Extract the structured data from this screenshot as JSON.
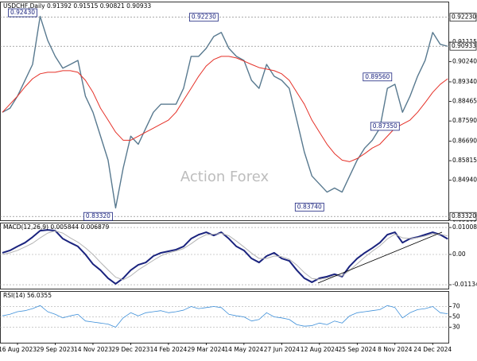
{
  "chart_data": [
    {
      "type": "line",
      "title": "USDCHF,Daily 0.91392 0.91515 0.90821 0.90933",
      "watermark": "Action Forex",
      "categories": [
        null,
        null,
        "16 Aug 2023",
        null,
        null,
        null,
        null,
        "29 Sep 2023",
        null,
        null,
        null,
        null,
        "14 Nov 2023",
        null,
        null,
        null,
        null,
        "29 Dec 2023",
        null,
        null,
        null,
        null,
        "14 Feb 2024",
        null,
        null,
        null,
        null,
        "29 Mar 2024",
        null,
        null,
        null,
        null,
        "14 May 2024",
        null,
        null,
        null,
        null,
        "27 Jun 2024",
        null,
        null,
        null,
        null,
        "12 Aug 2024",
        null,
        null,
        null,
        null,
        "25 Sep 2024",
        null,
        null,
        null,
        null,
        "8 Nov 2024",
        null,
        null,
        null,
        null,
        "24 Dec 2024",
        null,
        null
      ],
      "series": [
        {
          "color": "#58798f",
          "width": 1.4,
          "values": [
            0.8798,
            0.8816,
            0.887,
            0.8941,
            0.9012,
            0.9227,
            0.912,
            0.9048,
            0.8995,
            0.9012,
            0.903,
            0.887,
            0.8798,
            0.8691,
            0.8584,
            0.837,
            0.8548,
            0.8691,
            0.8655,
            0.8727,
            0.8798,
            0.8834,
            0.8834,
            0.8834,
            0.8905,
            0.9048,
            0.9048,
            0.9084,
            0.9137,
            0.9155,
            0.9084,
            0.9048,
            0.903,
            0.8941,
            0.8905,
            0.9012,
            0.8959,
            0.8941,
            0.8905,
            0.8763,
            0.862,
            0.8513,
            0.8477,
            0.8441,
            0.8459,
            0.8441,
            0.8513,
            0.8584,
            0.8638,
            0.8673,
            0.8727,
            0.8905,
            0.8923,
            0.8798,
            0.887,
            0.8959,
            0.903,
            0.9155,
            0.9102,
            0.9093
          ]
        },
        {
          "color": "#e53027",
          "width": 1,
          "values": [
            0.8798,
            0.8834,
            0.887,
            0.8912,
            0.8948,
            0.897,
            0.8977,
            0.8977,
            0.8984,
            0.8984,
            0.8977,
            0.8941,
            0.8887,
            0.8816,
            0.8763,
            0.8709,
            0.8673,
            0.8673,
            0.8691,
            0.8709,
            0.8727,
            0.8745,
            0.8763,
            0.8798,
            0.8852,
            0.8905,
            0.8959,
            0.9005,
            0.9034,
            0.9048,
            0.9048,
            0.9041,
            0.9027,
            0.9012,
            0.8998,
            0.8991,
            0.8984,
            0.897,
            0.8941,
            0.8887,
            0.8834,
            0.8763,
            0.8709,
            0.8655,
            0.8613,
            0.8584,
            0.8577,
            0.8591,
            0.8613,
            0.8638,
            0.8655,
            0.8691,
            0.8727,
            0.8745,
            0.8763,
            0.8798,
            0.8841,
            0.8887,
            0.8923,
            0.8948
          ]
        }
      ],
      "ylim": [
        0.8315,
        0.9293
      ],
      "yticks": [
        {
          "value": 0.91115,
          "label": "0.91115"
        },
        {
          "value": 0.9024,
          "label": "0.90240"
        },
        {
          "value": 0.8934,
          "label": "0.89340"
        },
        {
          "value": 0.88465,
          "label": "0.88465"
        },
        {
          "value": 0.8759,
          "label": "0.87590"
        },
        {
          "value": 0.8669,
          "label": "0.86690"
        },
        {
          "value": 0.85815,
          "label": "0.85815"
        },
        {
          "value": 0.8494,
          "label": "0.84940"
        },
        {
          "value": 0.83165,
          "label": "0.83165"
        }
      ],
      "grid": false,
      "levels": [
        {
          "value": 0.9223,
          "label": "0.92230"
        },
        {
          "value": 0.8332,
          "label": "0.83320"
        },
        {
          "value": 0.90933,
          "label": "0.90933"
        }
      ],
      "annotations": [
        {
          "x": 5,
          "value": 0.9243,
          "label": "0.92430"
        },
        {
          "x": 29,
          "value": 0.9223,
          "label": "0.92230"
        },
        {
          "x": 15,
          "value": 0.8332,
          "label": "0.83320"
        },
        {
          "x": 43,
          "value": 0.8374,
          "label": "0.83740"
        },
        {
          "x": 52,
          "value": 0.8956,
          "label": "0.89560"
        },
        {
          "x": 53,
          "value": 0.8735,
          "label": "0.87350"
        }
      ]
    },
    {
      "type": "line",
      "title": "MACD(12,26,9) 0.005844 0.006879",
      "series": [
        {
          "color": "#1a237e",
          "width": 2,
          "values": [
            0.0006,
            0.0015,
            0.003,
            0.0044,
            0.0065,
            0.0089,
            0.0092,
            0.0089,
            0.0059,
            0.0044,
            0.003,
            0.0,
            -0.0036,
            -0.0059,
            -0.0089,
            -0.011,
            -0.0089,
            -0.0059,
            -0.0039,
            -0.003,
            -0.0006,
            0.0006,
            0.0012,
            0.0018,
            0.003,
            0.0059,
            0.0074,
            0.0083,
            0.0071,
            0.0083,
            0.0059,
            0.003,
            0.0015,
            -0.0015,
            -0.003,
            -0.0006,
            0.0006,
            -0.0015,
            -0.0024,
            -0.0059,
            -0.0089,
            -0.0104,
            -0.0089,
            -0.0083,
            -0.0074,
            -0.0083,
            -0.0044,
            -0.0015,
            0.0006,
            0.0024,
            0.0044,
            0.0074,
            0.0083,
            0.0044,
            0.0059,
            0.0065,
            0.0074,
            0.0083,
            0.0074,
            0.0058
          ]
        },
        {
          "color": "#b4b4b4",
          "width": 1,
          "values": [
            0.0,
            0.0006,
            0.0015,
            0.0028,
            0.0042,
            0.0062,
            0.008,
            0.0088,
            0.008,
            0.0062,
            0.0046,
            0.0025,
            0.0,
            -0.003,
            -0.0058,
            -0.0085,
            -0.0095,
            -0.008,
            -0.0058,
            -0.004,
            -0.0022,
            -0.0005,
            0.0006,
            0.0013,
            0.0022,
            0.004,
            0.006,
            0.0074,
            0.0076,
            0.0079,
            0.007,
            0.005,
            0.0028,
            0.0005,
            -0.0015,
            -0.0015,
            -0.0006,
            -0.0008,
            -0.0018,
            -0.004,
            -0.0068,
            -0.009,
            -0.0093,
            -0.0088,
            -0.008,
            -0.008,
            -0.006,
            -0.0035,
            -0.001,
            0.0012,
            0.0032,
            0.0058,
            0.0076,
            0.0062,
            0.006,
            0.0063,
            0.0069,
            0.0077,
            0.0076,
            0.0069
          ]
        }
      ],
      "ylim": [
        -0.0128,
        0.0119
      ],
      "yticks": [
        0.010085,
        {
          "value": 0,
          "label": "0.00"
        },
        -0.011342
      ],
      "grid": true
    },
    {
      "type": "line",
      "title": "RSI(14) 56.0355",
      "series": [
        {
          "color": "#3d8fd9",
          "width": 0.8,
          "values": [
            52,
            55,
            60,
            62,
            66,
            72,
            60,
            55,
            48,
            52,
            55,
            42,
            40,
            38,
            36,
            30,
            48,
            58,
            52,
            58,
            60,
            62,
            58,
            60,
            63,
            70,
            66,
            68,
            70,
            68,
            55,
            52,
            50,
            42,
            45,
            58,
            50,
            48,
            45,
            35,
            32,
            33,
            38,
            35,
            42,
            38,
            52,
            58,
            60,
            62,
            64,
            72,
            68,
            48,
            58,
            64,
            66,
            70,
            58,
            56
          ]
        }
      ],
      "ylim": [
        0,
        100
      ],
      "yticks": [
        70,
        50,
        30
      ],
      "grid": true
    }
  ]
}
